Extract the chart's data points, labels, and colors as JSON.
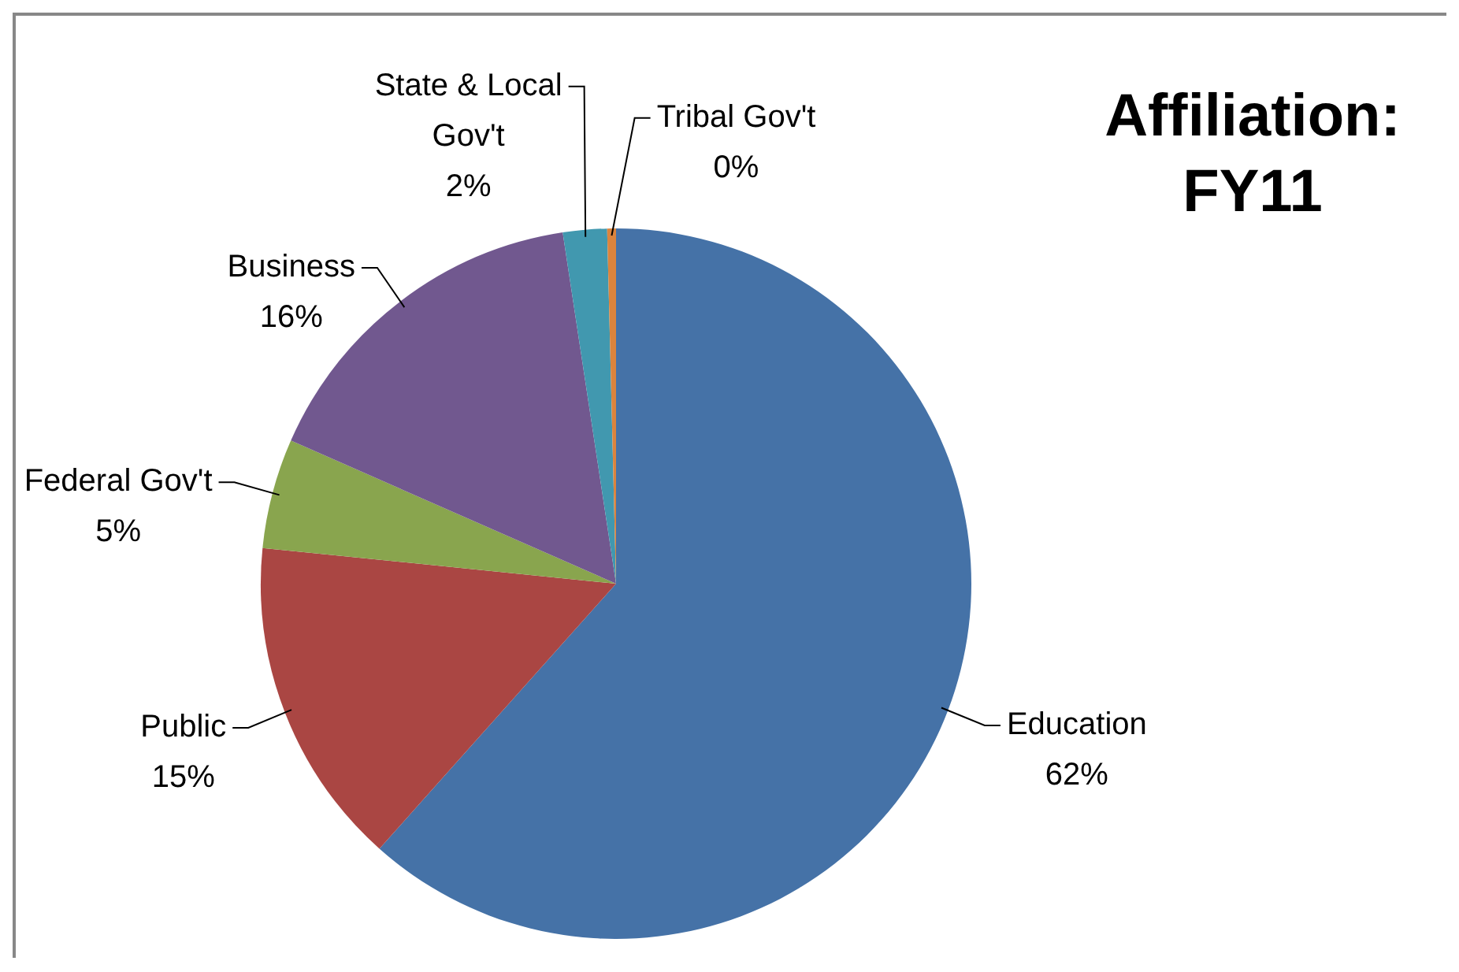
{
  "chart_data": {
    "type": "pie",
    "title": "Affiliation: FY11",
    "categories": [
      "Education",
      "Public",
      "Federal Gov't",
      "Business",
      "State & Local Gov't",
      "Tribal Gov't"
    ],
    "values": [
      61.6,
      15,
      5,
      16,
      2,
      0.4
    ],
    "value_labels": [
      "62%",
      "15%",
      "5%",
      "16%",
      "2%",
      "0%"
    ],
    "colors": [
      "#4572a7",
      "#aa4643",
      "#89a54e",
      "#71588f",
      "#4198af",
      "#db843d"
    ],
    "legend": false
  }
}
